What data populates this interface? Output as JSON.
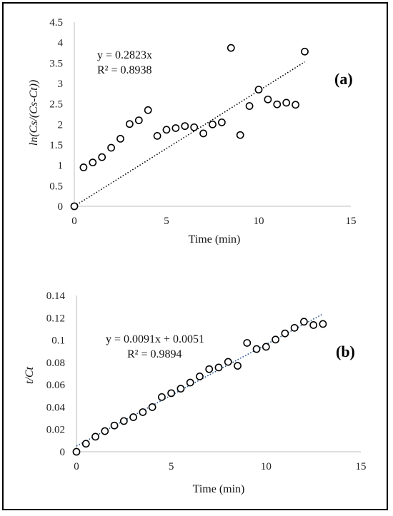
{
  "chart_data": [
    {
      "type": "scatter",
      "panel_label": "(a)",
      "xlabel": "Time (min)",
      "ylabel": "ln(Cs/(Cs-Ct))",
      "xlim": [
        0,
        15
      ],
      "ylim": [
        0,
        4.5
      ],
      "xticks": [
        0,
        5,
        10,
        15
      ],
      "yticks": [
        0,
        0.5,
        1,
        1.5,
        2,
        2.5,
        3,
        3.5,
        4,
        4.5
      ],
      "xtick_labels": [
        "0",
        "5",
        "10",
        "15"
      ],
      "ytick_labels": [
        "0",
        "0.5",
        "1",
        "1.5",
        "2",
        "2.5",
        "3",
        "3.5",
        "4",
        "4.5"
      ],
      "grid": false,
      "marker_color": "#000000",
      "trendline_color": "#000000",
      "trendline": {
        "slope": 0.2823,
        "intercept": 0,
        "x_range": [
          0,
          12.5
        ]
      },
      "equation": "y = 0.2823x",
      "r_squared": "R² = 0.8938",
      "series": [
        {
          "x": [
            0,
            0.5,
            1,
            1.5,
            2,
            2.5,
            3,
            3.5,
            4,
            4.5,
            5,
            5.5,
            6,
            6.5,
            7,
            7.5,
            8,
            8.5,
            9,
            9.5,
            10,
            10.5,
            11,
            11.5,
            12,
            12.5
          ],
          "y": [
            0,
            0.95,
            1.07,
            1.2,
            1.43,
            1.65,
            2.01,
            2.1,
            2.35,
            1.72,
            1.87,
            1.91,
            1.96,
            1.93,
            1.78,
            2.0,
            2.05,
            3.87,
            1.74,
            2.45,
            2.85,
            2.61,
            2.49,
            2.53,
            2.48,
            3.78
          ]
        }
      ]
    },
    {
      "type": "scatter",
      "panel_label": "(b)",
      "xlabel": "Time (min)",
      "ylabel": "t/Ct",
      "xlim": [
        0,
        15
      ],
      "ylim": [
        0,
        0.14
      ],
      "xticks": [
        0,
        5,
        10,
        15
      ],
      "yticks": [
        0,
        0.02,
        0.04,
        0.06,
        0.08,
        0.1,
        0.12,
        0.14
      ],
      "xtick_labels": [
        "0",
        "5",
        "10",
        "15"
      ],
      "ytick_labels": [
        "0",
        "0.02",
        "0.04",
        "0.06",
        "0.08",
        "0.1",
        "0.12",
        "0.14"
      ],
      "grid": false,
      "marker_color": "#000000",
      "trendline_color": "#1f4e8c",
      "trendline": {
        "slope": 0.0091,
        "intercept": 0.0051,
        "x_range": [
          0,
          13
        ]
      },
      "equation": "y = 0.0091x + 0.0051",
      "r_squared": "R² = 0.9894",
      "series": [
        {
          "x": [
            0,
            0.5,
            1,
            1.5,
            2,
            2.5,
            3,
            3.5,
            4,
            4.5,
            5,
            5.5,
            6,
            6.5,
            7,
            7.5,
            8,
            8.5,
            9,
            9.5,
            10,
            10.5,
            11,
            11.5,
            12,
            12.5,
            13
          ],
          "y": [
            0,
            0.0072,
            0.0135,
            0.0185,
            0.0235,
            0.0275,
            0.031,
            0.0355,
            0.04,
            0.049,
            0.0525,
            0.0565,
            0.062,
            0.0675,
            0.074,
            0.0755,
            0.0805,
            0.077,
            0.0975,
            0.092,
            0.094,
            0.1005,
            0.106,
            0.111,
            0.1165,
            0.1135,
            0.1145
          ]
        }
      ]
    }
  ]
}
